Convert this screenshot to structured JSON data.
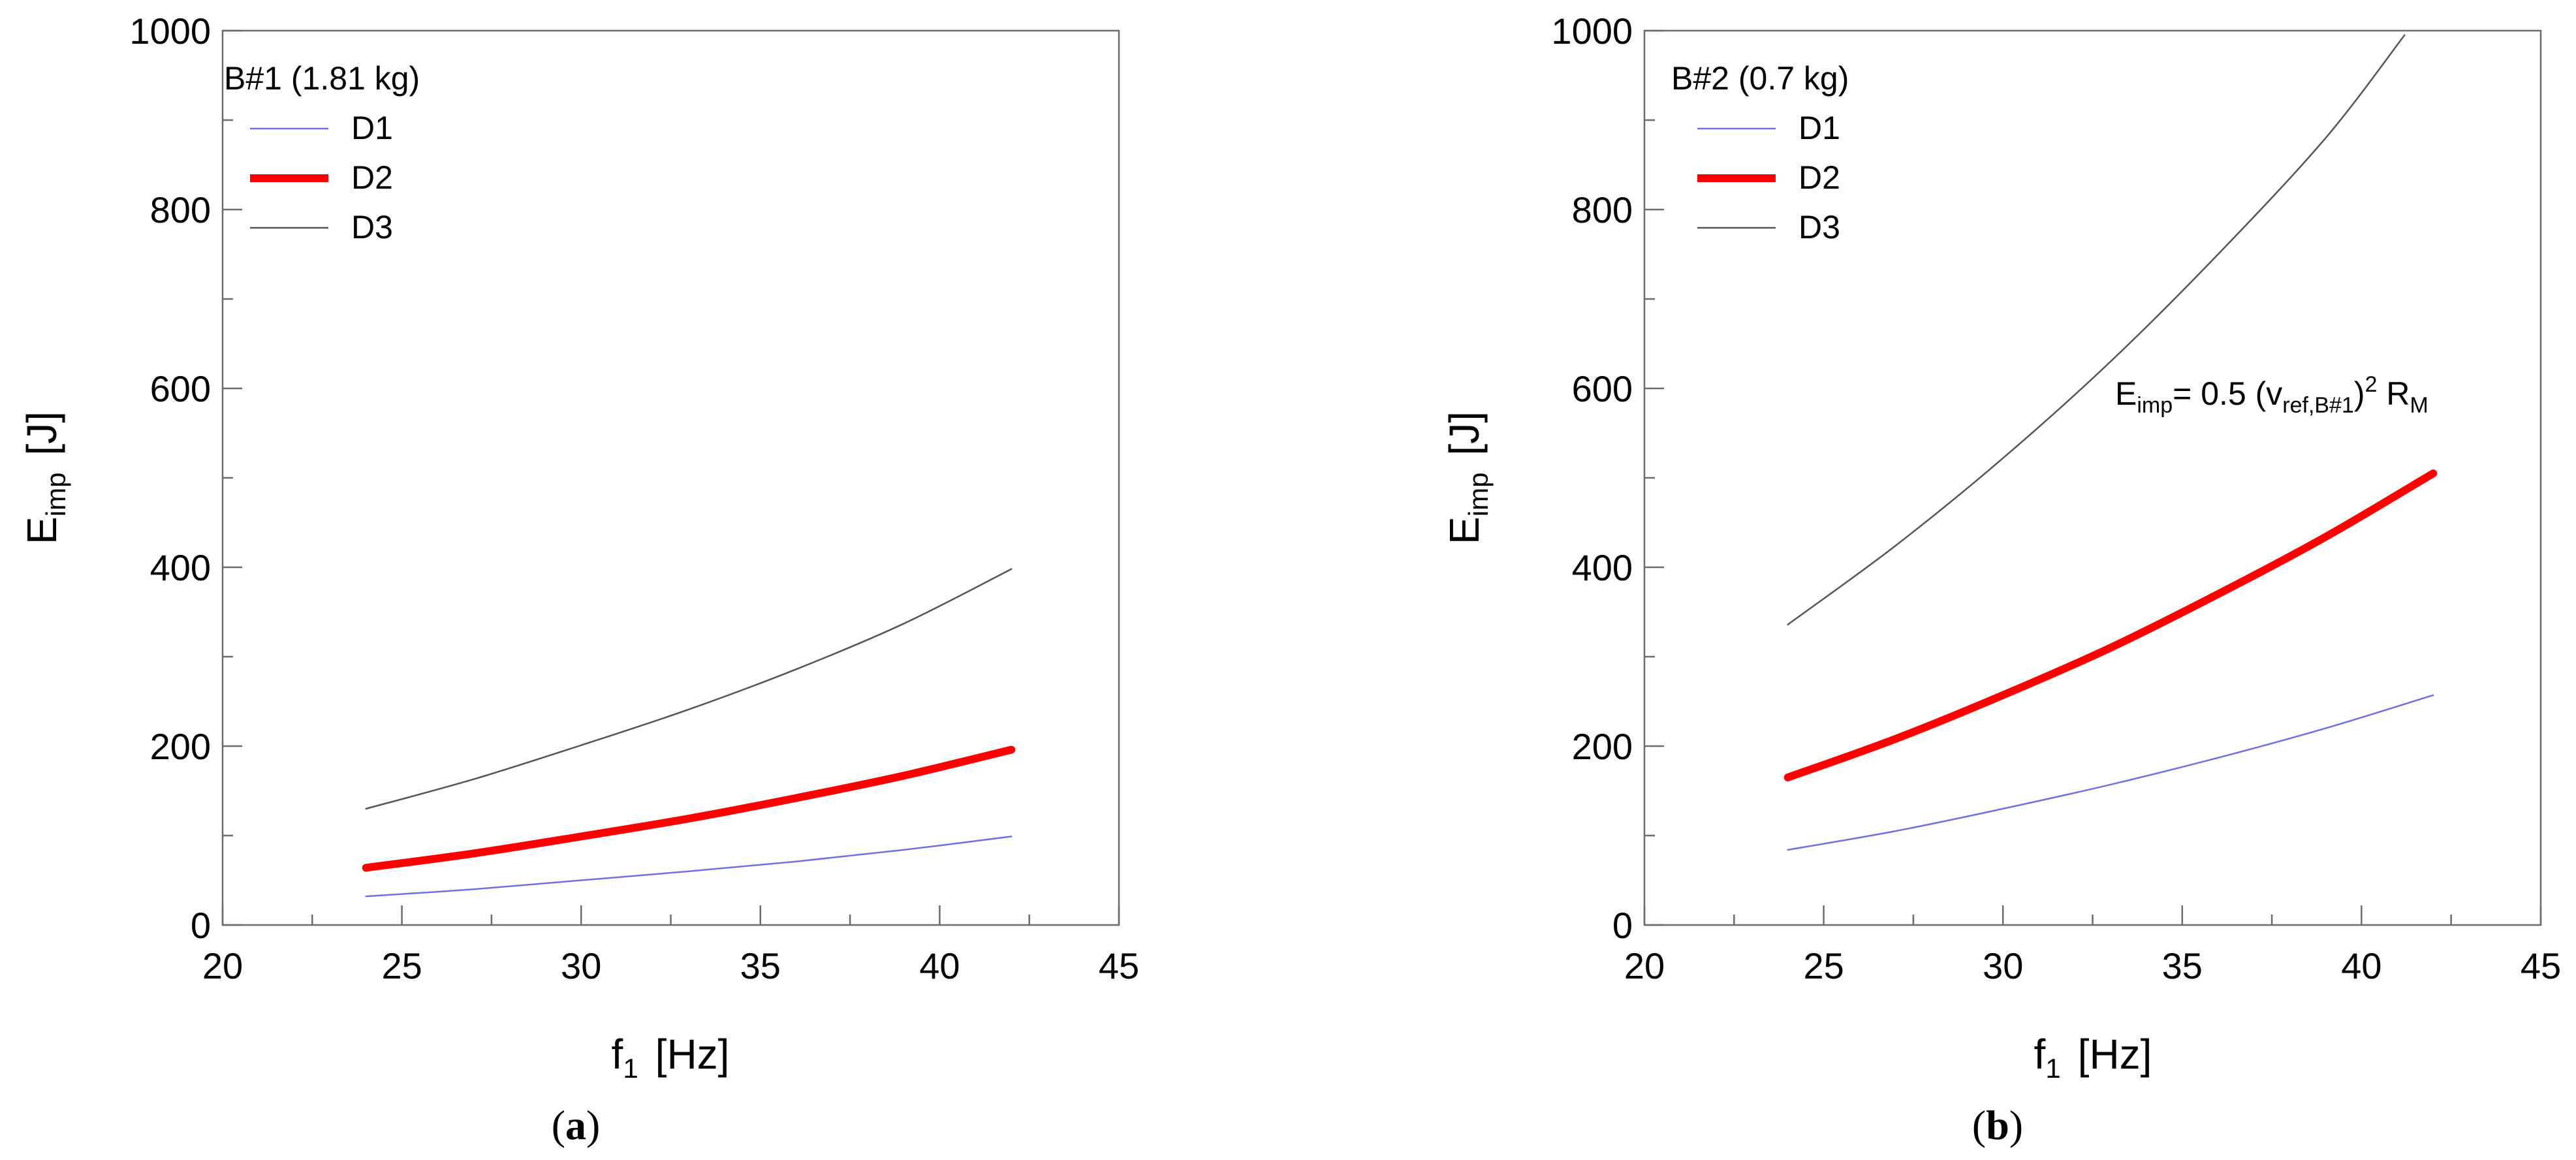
{
  "chart_data": [
    {
      "type": "line",
      "panel_label": "a",
      "xlabel": "f",
      "xlabel_sub": "1",
      "xlabel_unit": "[Hz]",
      "ylabel": "E",
      "ylabel_sub": "imp",
      "ylabel_unit": "[J]",
      "xlim": [
        20,
        45
      ],
      "ylim": [
        0,
        1000
      ],
      "xticks": [
        20,
        25,
        30,
        35,
        40,
        45
      ],
      "yticks": [
        0,
        200,
        400,
        600,
        800,
        1000
      ],
      "legend_title": "B#1 (1.81 kg)",
      "legend_position": "top-left",
      "series": [
        {
          "name": "D1",
          "color": "#7070e0",
          "line": "thin",
          "x": [
            24,
            27,
            30,
            33,
            36,
            39,
            42
          ],
          "y": [
            32,
            40,
            50,
            60,
            71,
            84,
            99
          ]
        },
        {
          "name": "D2",
          "color": "#ff0000",
          "line": "thick",
          "x": [
            24,
            27,
            30,
            33,
            36,
            39,
            42
          ],
          "y": [
            64,
            80,
            99,
            119,
            142,
            167,
            196
          ]
        },
        {
          "name": "D3",
          "color": "#555555",
          "line": "thin",
          "x": [
            24,
            27,
            30,
            33,
            36,
            39,
            42
          ],
          "y": [
            130,
            163,
            201,
            241,
            286,
            337,
            398
          ]
        }
      ]
    },
    {
      "type": "line",
      "panel_label": "b",
      "xlabel": "f",
      "xlabel_sub": "1",
      "xlabel_unit": "[Hz]",
      "ylabel": "E",
      "ylabel_sub": "imp",
      "ylabel_unit": "[J]",
      "xlim": [
        20,
        45
      ],
      "ylim": [
        0,
        1000
      ],
      "xticks": [
        20,
        25,
        30,
        35,
        40,
        45
      ],
      "yticks": [
        0,
        200,
        400,
        600,
        800,
        1000
      ],
      "legend_title": "B#2 (0.7 kg)",
      "legend_position": "top-left",
      "annotation": {
        "base": "E",
        "sub1": "imp",
        "mid": "= 0.5 (v",
        "sub2": "ref,B#1",
        "close": ")",
        "sup": "2",
        "tail": " R",
        "sub3": "M"
      },
      "series": [
        {
          "name": "D1",
          "color": "#7070e0",
          "line": "thin",
          "x": [
            24,
            27,
            30,
            33,
            36,
            39,
            42
          ],
          "y": [
            84,
            105,
            130,
            157,
            187,
            220,
            257
          ]
        },
        {
          "name": "D2",
          "color": "#ff0000",
          "line": "thick",
          "x": [
            24,
            27,
            30,
            33,
            36,
            39,
            42
          ],
          "y": [
            165,
            208,
            257,
            310,
            370,
            434,
            505
          ]
        },
        {
          "name": "D3",
          "color": "#555555",
          "line": "thin",
          "x": [
            24,
            27,
            30,
            33,
            36,
            39,
            41.2
          ],
          "y": [
            336,
            424,
            522,
            630,
            750,
            880,
            995
          ]
        }
      ]
    }
  ]
}
